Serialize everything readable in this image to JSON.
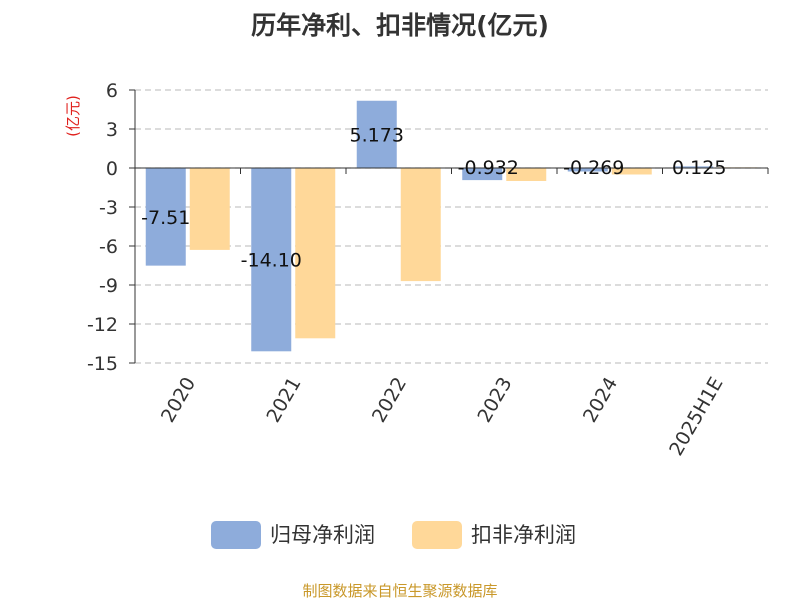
{
  "chart_data": {
    "type": "bar",
    "title": "历年净利、扣非情况(亿元)",
    "ylabel": "(亿元)",
    "categories": [
      "2020",
      "2021",
      "2022",
      "2023",
      "2024",
      "2025H1E"
    ],
    "series": [
      {
        "name": "归母净利润",
        "values": [
          -7.51,
          -14.1,
          5.173,
          -0.932,
          -0.269,
          0.125
        ],
        "color": "#8eacdb",
        "data_labels": [
          "-7.51",
          "-14.10",
          "5.173",
          "-0.932",
          "-0.269",
          "0.125"
        ]
      },
      {
        "name": "扣非净利润",
        "values": [
          -6.3,
          -13.1,
          -8.7,
          -1.0,
          -0.5,
          0.05
        ],
        "color": "#ffd899"
      }
    ],
    "ylim": [
      -15,
      6
    ],
    "yticks": [
      "6",
      "3",
      "0",
      "-3",
      "-6",
      "-9",
      "-12",
      "-15"
    ],
    "grid": true,
    "legend": "bottom"
  },
  "footer": {
    "source": "制图数据来自恒生聚源数据库"
  },
  "colors": {
    "ylabel": "#e0201c",
    "footer": "#c9982a",
    "grid": "#c8c8c8",
    "axis": "#333333",
    "text": "#333333"
  }
}
